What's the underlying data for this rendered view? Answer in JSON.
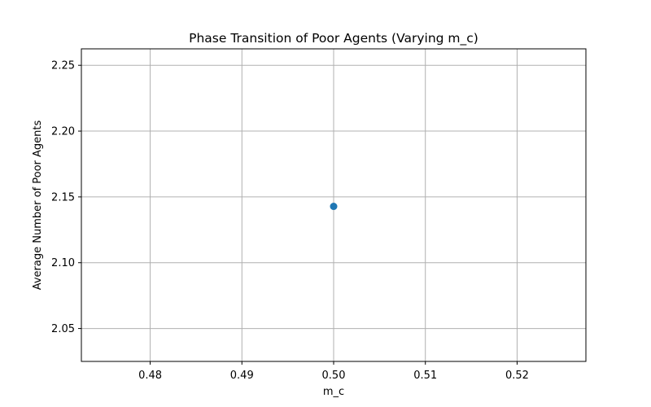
{
  "chart_data": {
    "type": "scatter",
    "title": "Phase Transition of Poor Agents (Varying m_c)",
    "xlabel": "m_c",
    "ylabel": "Average Number of Poor Agents",
    "xlim": [
      0.4725,
      0.5275
    ],
    "ylim": [
      2.025,
      2.2625
    ],
    "xticks": [
      0.48,
      0.49,
      0.5,
      0.51,
      0.52
    ],
    "xtick_labels": [
      "0.48",
      "0.49",
      "0.50",
      "0.51",
      "0.52"
    ],
    "yticks": [
      2.05,
      2.1,
      2.15,
      2.2,
      2.25
    ],
    "ytick_labels": [
      "2.05",
      "2.10",
      "2.15",
      "2.20",
      "2.25"
    ],
    "grid": true,
    "marker": "circle",
    "series": [
      {
        "x": [
          0.5
        ],
        "y": [
          2.1428
        ],
        "color": "#1f77b4"
      }
    ]
  },
  "colors": {
    "grid": "#b0b0b0",
    "axes": "#000000",
    "marker": "#1f77b4"
  }
}
